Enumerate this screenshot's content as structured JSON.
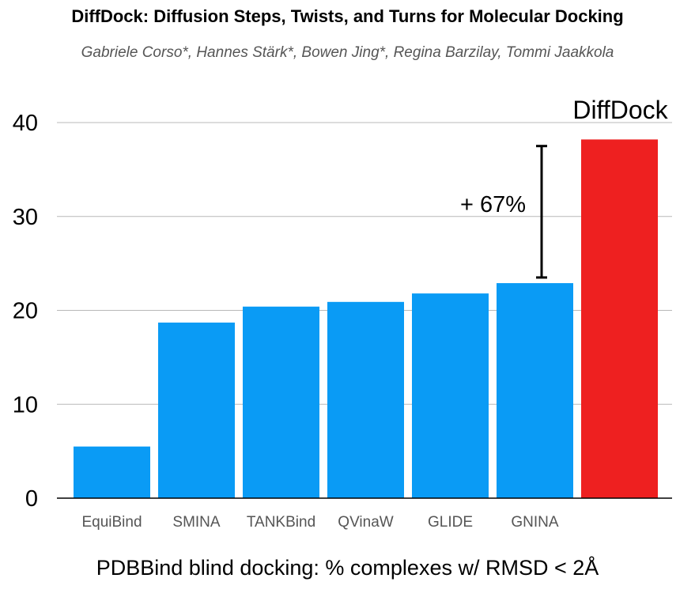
{
  "header": {
    "title": "DiffDock: Diffusion Steps, Twists, and Turns for Molecular Docking",
    "authors": "Gabriele Corso*, Hannes Stärk*, Bowen Jing*, Regina Barzilay, Tommi Jaakkola"
  },
  "chart_data": {
    "type": "bar",
    "categories": [
      "EquiBind",
      "SMINA",
      "TANKBind",
      "QVinaW",
      "GLIDE",
      "GNINA",
      "DiffDock"
    ],
    "values": [
      5.5,
      18.7,
      20.4,
      20.9,
      21.8,
      22.9,
      38.2
    ],
    "bar_colors": [
      "#0a9bf5",
      "#0a9bf5",
      "#0a9bf5",
      "#0a9bf5",
      "#0a9bf5",
      "#0a9bf5",
      "#ee2020"
    ],
    "highlight_label": "DiffDock",
    "ylim": [
      0,
      40
    ],
    "yticks": [
      "0",
      "10",
      "20",
      "30",
      "40"
    ],
    "xlabel": "PDBBind blind docking: % complexes w/ RMSD < 2Å",
    "annotation": {
      "text": "+ 67%",
      "from_value": 23.5,
      "to_value": 37.5
    },
    "grid": true,
    "legend": "none"
  }
}
